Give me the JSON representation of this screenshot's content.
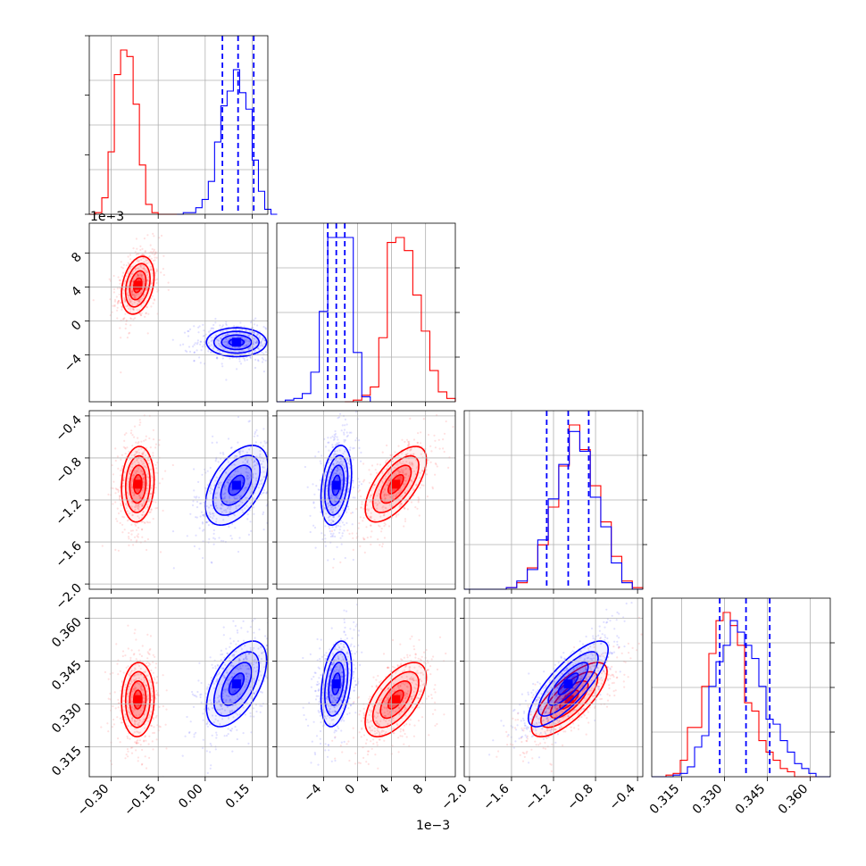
{
  "chart_data": {
    "type": "corner",
    "grid": true,
    "colors": {
      "series_a": "#ff0000",
      "series_b": "#0000ff"
    },
    "series": [
      {
        "color": "red"
      },
      {
        "color": "blue"
      }
    ],
    "offset_labels": {
      "y_param2": "1e−3",
      "x_param2": "1e−3"
    },
    "params": [
      {
        "key": "p1",
        "lim": [
          -0.37,
          0.2
        ],
        "ticks": [
          -0.3,
          -0.15,
          0.0,
          0.15
        ],
        "tick_labels": [
          "−0.30",
          "−0.15",
          "0.00",
          "0.15"
        ]
      },
      {
        "key": "p2",
        "lim": [
          -0.0095,
          0.0115
        ],
        "ticks": [
          -0.004,
          0.0,
          0.004,
          0.008
        ],
        "tick_labels": [
          "−4",
          "0",
          "4",
          "8"
        ]
      },
      {
        "key": "p3",
        "lim": [
          -2.05,
          -0.35
        ],
        "ticks": [
          -2.0,
          -1.6,
          -1.2,
          -0.8,
          -0.4
        ],
        "tick_labels": [
          "−2.0",
          "−1.6",
          "−1.2",
          "−0.8",
          "−0.4"
        ]
      },
      {
        "key": "p4",
        "lim": [
          0.3045,
          0.367
        ],
        "ticks": [
          0.315,
          0.33,
          0.345,
          0.36
        ],
        "tick_labels": [
          "0.315",
          "0.330",
          "0.345",
          "0.360"
        ]
      }
    ],
    "histograms": [
      {
        "param": 0,
        "quantiles_blue": [
          0.055,
          0.105,
          0.155
        ],
        "red": {
          "edges": [
            -0.37,
            -0.35,
            -0.33,
            -0.31,
            -0.29,
            -0.27,
            -0.25,
            -0.23,
            -0.21,
            -0.19,
            -0.17,
            -0.15,
            -0.13,
            -0.11,
            -0.09
          ],
          "counts": [
            0,
            1,
            10,
            38,
            85,
            100,
            96,
            67,
            30,
            6,
            1,
            0,
            0,
            0
          ]
        },
        "blue": {
          "edges": [
            -0.09,
            -0.07,
            -0.05,
            -0.03,
            -0.01,
            0.01,
            0.03,
            0.05,
            0.07,
            0.09,
            0.11,
            0.13,
            0.15,
            0.17,
            0.19,
            0.21,
            0.23
          ],
          "counts": [
            0,
            1,
            1,
            4,
            9,
            20,
            44,
            66,
            75,
            88,
            74,
            64,
            33,
            14,
            3,
            0
          ]
        }
      },
      {
        "param": 1,
        "quantiles_blue": [
          -0.0035,
          -0.0025,
          -0.0015
        ],
        "red": {
          "edges": [
            -0.0015,
            -0.0005,
            0.0005,
            0.0015,
            0.0025,
            0.0035,
            0.0045,
            0.0055,
            0.0065,
            0.0075,
            0.0085,
            0.0095,
            0.0105,
            0.0115
          ],
          "counts": [
            0,
            1,
            4,
            9,
            39,
            97,
            100,
            92,
            65,
            43,
            19,
            6,
            2
          ]
        },
        "blue": {
          "edges": [
            -0.0095,
            -0.0085,
            -0.0075,
            -0.0065,
            -0.0055,
            -0.0045,
            -0.0035,
            -0.0025,
            -0.0015,
            -0.0005,
            0.0005,
            0.0015
          ],
          "counts": [
            0,
            1,
            2,
            5,
            18,
            55,
            100,
            100,
            100,
            30,
            3
          ]
        }
      },
      {
        "param": 2,
        "quantiles_blue": [
          -1.265,
          -1.06,
          -0.865
        ],
        "red": {
          "edges": [
            -2.05,
            -1.95,
            -1.85,
            -1.75,
            -1.65,
            -1.55,
            -1.45,
            -1.35,
            -1.25,
            -1.15,
            -1.05,
            -0.95,
            -0.85,
            -0.75,
            -0.65,
            -0.55,
            -0.45,
            -0.35
          ],
          "counts": [
            0,
            0,
            0,
            0,
            1,
            4,
            13,
            27,
            50,
            75,
            100,
            85,
            63,
            41,
            20,
            5,
            1
          ]
        },
        "blue": {
          "edges": [
            -2.05,
            -1.95,
            -1.85,
            -1.75,
            -1.65,
            -1.55,
            -1.45,
            -1.35,
            -1.25,
            -1.15,
            -1.05,
            -0.95,
            -0.85,
            -0.75,
            -0.65,
            -0.55,
            -0.45,
            -0.35
          ],
          "counts": [
            0,
            0,
            0,
            0,
            1,
            5,
            12,
            30,
            55,
            76,
            96,
            84,
            56,
            38,
            16,
            4,
            0
          ]
        }
      },
      {
        "param": 3,
        "quantiles_blue": [
          0.3283,
          0.3375,
          0.3458
        ],
        "red": {
          "edges": [
            0.3045,
            0.307,
            0.3095,
            0.312,
            0.3145,
            0.317,
            0.3195,
            0.322,
            0.3245,
            0.327,
            0.3295,
            0.332,
            0.3345,
            0.337,
            0.3395,
            0.342,
            0.3445,
            0.347,
            0.3495,
            0.352,
            0.3545,
            0.357,
            0.3595,
            0.362,
            0.3645,
            0.367
          ],
          "counts": [
            0,
            0,
            1,
            2,
            10,
            30,
            30,
            55,
            75,
            95,
            100,
            92,
            80,
            45,
            40,
            22,
            15,
            10,
            5,
            3,
            0,
            0,
            0,
            0,
            0
          ]
        },
        "blue": {
          "edges": [
            0.3045,
            0.307,
            0.3095,
            0.312,
            0.3145,
            0.317,
            0.3195,
            0.322,
            0.3245,
            0.327,
            0.3295,
            0.332,
            0.3345,
            0.337,
            0.3395,
            0.342,
            0.3445,
            0.347,
            0.3495,
            0.352,
            0.3545,
            0.357,
            0.3595,
            0.362,
            0.3645,
            0.367
          ],
          "counts": [
            0,
            0,
            0,
            1,
            2,
            6,
            18,
            25,
            55,
            70,
            80,
            95,
            88,
            80,
            72,
            55,
            35,
            32,
            22,
            15,
            8,
            5,
            2,
            0,
            0
          ]
        }
      }
    ],
    "pairs": [
      {
        "xi": 0,
        "yi": 1,
        "red": {
          "mean": [
            -0.215,
            0.0042
          ],
          "sd": [
            0.026,
            0.0017
          ],
          "rho": 0.3
        },
        "blue": {
          "mean": [
            0.1,
            -0.0025
          ],
          "sd": [
            0.048,
            0.00085
          ],
          "rho": 0.0
        }
      },
      {
        "xi": 0,
        "yi": 2,
        "red": {
          "mean": [
            -0.215,
            -1.05
          ],
          "sd": [
            0.026,
            0.18
          ],
          "rho": 0.1
        },
        "blue": {
          "mean": [
            0.1,
            -1.06
          ],
          "sd": [
            0.05,
            0.19
          ],
          "rho": 0.5
        }
      },
      {
        "xi": 1,
        "yi": 2,
        "red": {
          "mean": [
            0.0045,
            -1.05
          ],
          "sd": [
            0.0018,
            0.18
          ],
          "rho": 0.65
        },
        "blue": {
          "mean": [
            -0.0025,
            -1.06
          ],
          "sd": [
            0.0009,
            0.19
          ],
          "rho": 0.3
        }
      },
      {
        "xi": 0,
        "yi": 3,
        "red": {
          "mean": [
            -0.215,
            0.3315
          ],
          "sd": [
            0.026,
            0.0065
          ],
          "rho": 0.05
        },
        "blue": {
          "mean": [
            0.1,
            0.337
          ],
          "sd": [
            0.048,
            0.0075
          ],
          "rho": 0.55
        }
      },
      {
        "xi": 1,
        "yi": 3,
        "red": {
          "mean": [
            0.0045,
            0.3315
          ],
          "sd": [
            0.0018,
            0.0065
          ],
          "rho": 0.6
        },
        "blue": {
          "mean": [
            -0.0025,
            0.337
          ],
          "sd": [
            0.0009,
            0.0075
          ],
          "rho": 0.35
        }
      },
      {
        "xi": 2,
        "yi": 3,
        "red": {
          "mean": [
            -1.05,
            0.3315
          ],
          "sd": [
            0.18,
            0.0065
          ],
          "rho": 0.75
        },
        "blue": {
          "mean": [
            -1.06,
            0.337
          ],
          "sd": [
            0.19,
            0.0075
          ],
          "rho": 0.8
        }
      }
    ]
  }
}
